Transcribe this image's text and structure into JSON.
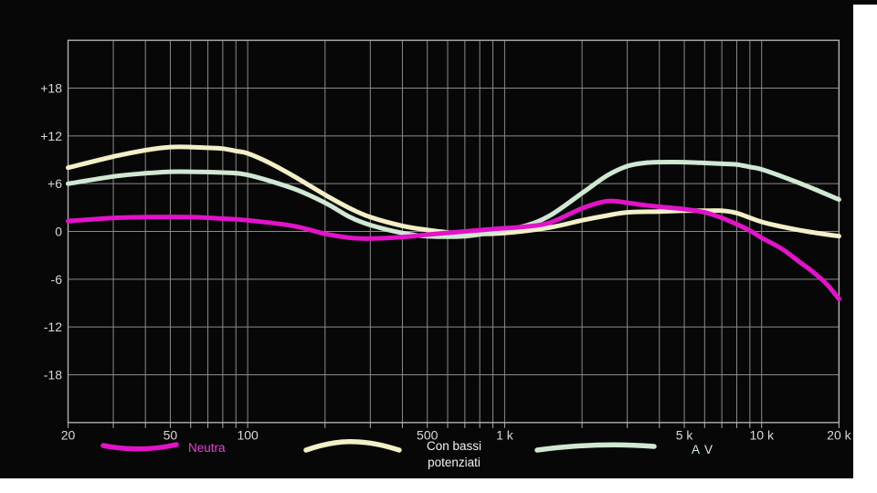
{
  "page": {
    "background": "#ffffff",
    "panel_bg": "#070707"
  },
  "chart_data": {
    "type": "line",
    "title": "",
    "xlabel": "",
    "ylabel": "",
    "x_scale": "log",
    "x_range_hz": [
      20,
      20000
    ],
    "ylim": [
      -24,
      24
    ],
    "grid": "on",
    "grid_color": "#8a8a8a",
    "frame_color": "#b0b0b0",
    "axis_text_color": "#d8d8d8",
    "legend_position": "bottom",
    "x_ticks": [
      {
        "hz": 20,
        "label": "20"
      },
      {
        "hz": 50,
        "label": "50"
      },
      {
        "hz": 100,
        "label": "100"
      },
      {
        "hz": 500,
        "label": "500"
      },
      {
        "hz": 1000,
        "label": "1 k"
      },
      {
        "hz": 5000,
        "label": "5 k"
      },
      {
        "hz": 10000,
        "label": "10 k"
      },
      {
        "hz": 20000,
        "label": "20 k"
      }
    ],
    "y_ticks": [
      {
        "db": 18,
        "label": "+18"
      },
      {
        "db": 12,
        "label": "+12"
      },
      {
        "db": 6,
        "label": "+6"
      },
      {
        "db": 0,
        "label": "0"
      },
      {
        "db": -6,
        "label": "-6"
      },
      {
        "db": -12,
        "label": "-12"
      },
      {
        "db": -18,
        "label": "-18"
      }
    ],
    "series": [
      {
        "name": "Con bassi potenziati",
        "color": "#f3efc7",
        "points": [
          [
            20,
            8.0
          ],
          [
            30,
            9.4
          ],
          [
            40,
            10.2
          ],
          [
            50,
            10.6
          ],
          [
            60,
            10.6
          ],
          [
            70,
            10.5
          ],
          [
            80,
            10.4
          ],
          [
            90,
            10.1
          ],
          [
            100,
            9.8
          ],
          [
            120,
            8.7
          ],
          [
            150,
            7.0
          ],
          [
            200,
            4.6
          ],
          [
            250,
            2.9
          ],
          [
            300,
            1.8
          ],
          [
            400,
            0.7
          ],
          [
            500,
            0.2
          ],
          [
            700,
            -0.3
          ],
          [
            1000,
            -0.2
          ],
          [
            1500,
            0.5
          ],
          [
            2000,
            1.4
          ],
          [
            2500,
            2.0
          ],
          [
            3000,
            2.4
          ],
          [
            4000,
            2.5
          ],
          [
            5000,
            2.6
          ],
          [
            6000,
            2.6
          ],
          [
            7000,
            2.6
          ],
          [
            8000,
            2.3
          ],
          [
            10000,
            1.2
          ],
          [
            12000,
            0.6
          ],
          [
            15000,
            0.0
          ],
          [
            20000,
            -0.6
          ]
        ]
      },
      {
        "name": "A V",
        "color": "#cfe8d2",
        "points": [
          [
            20,
            6.0
          ],
          [
            30,
            6.9
          ],
          [
            40,
            7.3
          ],
          [
            50,
            7.5
          ],
          [
            60,
            7.5
          ],
          [
            80,
            7.4
          ],
          [
            100,
            7.1
          ],
          [
            150,
            5.4
          ],
          [
            200,
            3.6
          ],
          [
            250,
            1.8
          ],
          [
            300,
            0.8
          ],
          [
            400,
            -0.2
          ],
          [
            500,
            -0.6
          ],
          [
            700,
            -0.6
          ],
          [
            900,
            -0.1
          ],
          [
            1200,
            0.7
          ],
          [
            1500,
            2.0
          ],
          [
            2000,
            4.8
          ],
          [
            2500,
            7.0
          ],
          [
            3000,
            8.2
          ],
          [
            3500,
            8.6
          ],
          [
            4000,
            8.7
          ],
          [
            5000,
            8.7
          ],
          [
            6000,
            8.6
          ],
          [
            7000,
            8.5
          ],
          [
            8000,
            8.4
          ],
          [
            9000,
            8.1
          ],
          [
            10000,
            7.8
          ],
          [
            12000,
            6.9
          ],
          [
            15000,
            5.7
          ],
          [
            20000,
            4.0
          ]
        ]
      },
      {
        "name": "Neutra",
        "color": "#e213c9",
        "points": [
          [
            20,
            1.3
          ],
          [
            30,
            1.7
          ],
          [
            40,
            1.8
          ],
          [
            60,
            1.8
          ],
          [
            80,
            1.6
          ],
          [
            100,
            1.4
          ],
          [
            150,
            0.7
          ],
          [
            200,
            -0.3
          ],
          [
            250,
            -0.8
          ],
          [
            300,
            -0.9
          ],
          [
            400,
            -0.7
          ],
          [
            500,
            -0.4
          ],
          [
            700,
            0.0
          ],
          [
            900,
            0.3
          ],
          [
            1200,
            0.6
          ],
          [
            1500,
            1.1
          ],
          [
            2000,
            2.9
          ],
          [
            2500,
            3.8
          ],
          [
            3000,
            3.6
          ],
          [
            3500,
            3.3
          ],
          [
            4000,
            3.1
          ],
          [
            5000,
            2.8
          ],
          [
            6000,
            2.4
          ],
          [
            7000,
            1.7
          ],
          [
            8000,
            0.9
          ],
          [
            9000,
            0.1
          ],
          [
            10000,
            -0.8
          ],
          [
            12000,
            -2.2
          ],
          [
            14000,
            -3.8
          ],
          [
            16000,
            -5.2
          ],
          [
            18000,
            -6.7
          ],
          [
            20000,
            -8.5
          ]
        ]
      }
    ],
    "legend": [
      {
        "label": "Neutra",
        "text_color": "#e643d6",
        "swatch_color": "#e213c9"
      },
      {
        "label": "Con bassi potenziati",
        "line1": "Con bassi",
        "line2": "potenziati",
        "text_color": "#f2f2f2",
        "swatch_color": "#f3efc7"
      },
      {
        "label": "A V",
        "text_color": "#d9eedd",
        "swatch_color": "#cfe8d2"
      }
    ]
  }
}
